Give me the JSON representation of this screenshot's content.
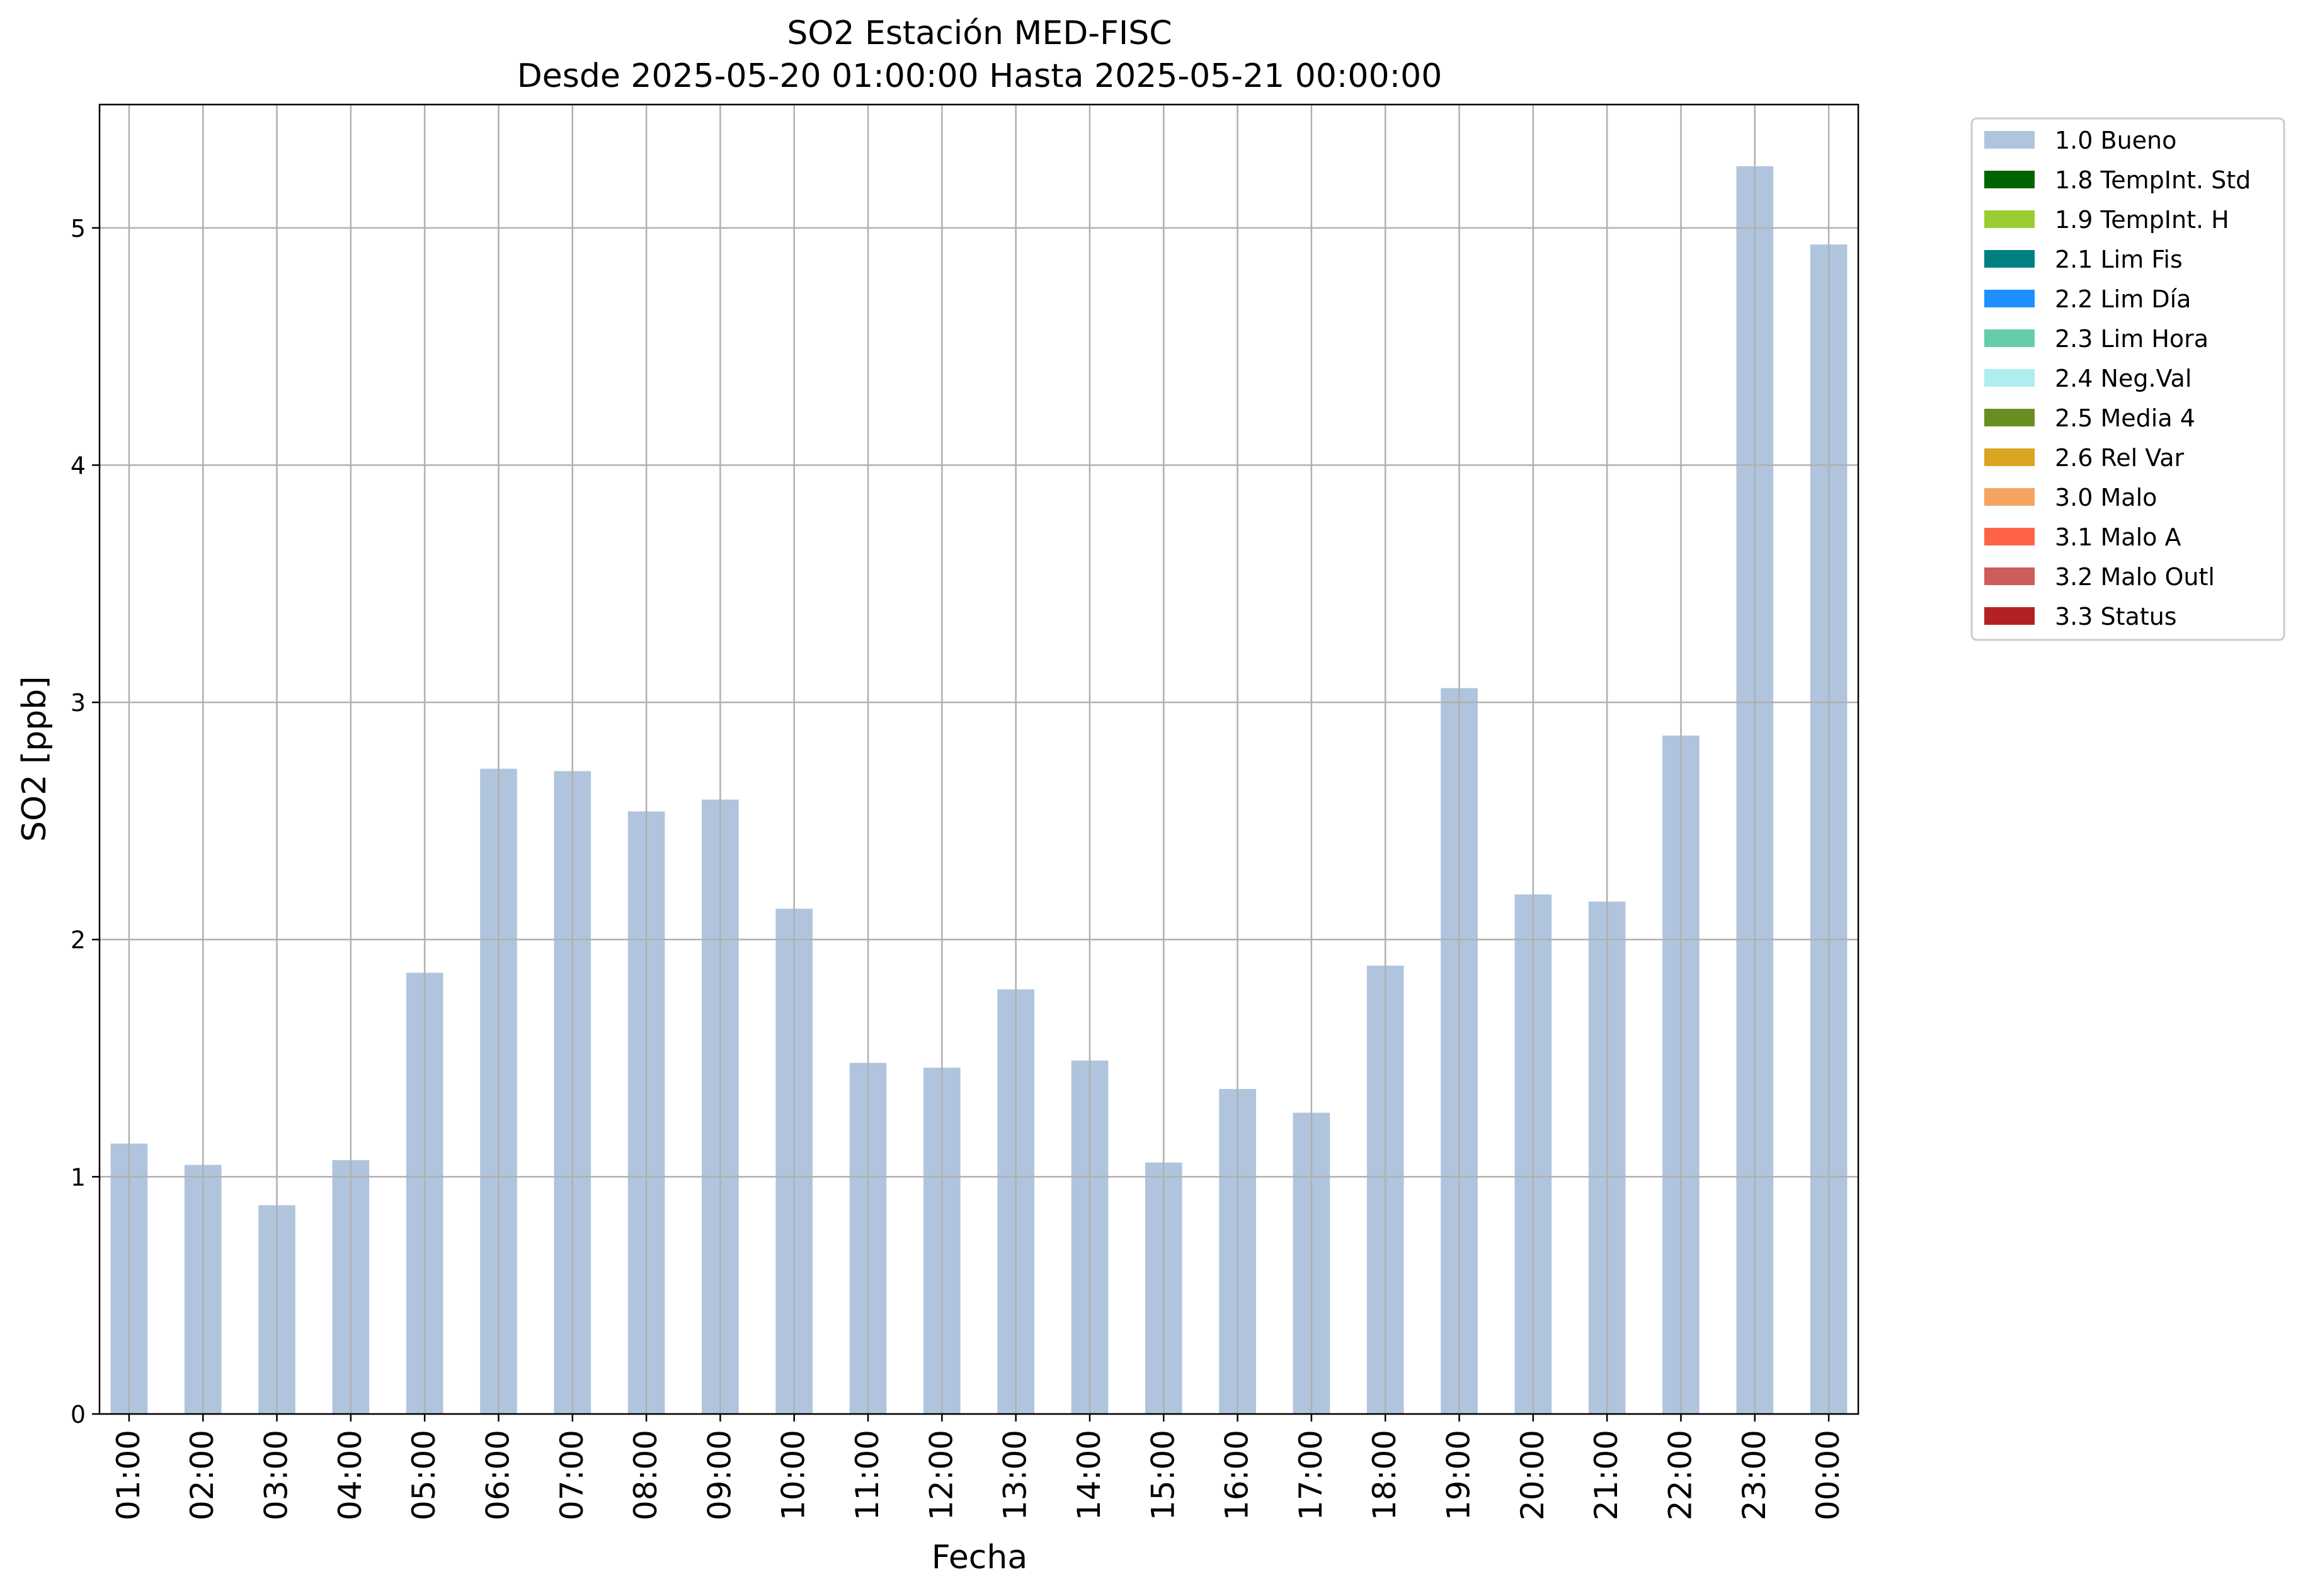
{
  "chart_data": {
    "type": "bar",
    "title": "SO2 Estación MED-FISC",
    "subtitle": "Desde 2025-05-20 01:00:00 Hasta 2025-05-21 00:00:00",
    "xlabel": "Fecha",
    "ylabel": "SO2 [ppb]",
    "ylim": [
      0,
      5.52
    ],
    "yticks": [
      "0",
      "1",
      "2",
      "3",
      "4",
      "5"
    ],
    "grid": true,
    "legend_position": "outside-right-top",
    "categories": [
      "01:00",
      "02:00",
      "03:00",
      "04:00",
      "05:00",
      "06:00",
      "07:00",
      "08:00",
      "09:00",
      "10:00",
      "11:00",
      "12:00",
      "13:00",
      "14:00",
      "15:00",
      "16:00",
      "17:00",
      "18:00",
      "19:00",
      "20:00",
      "21:00",
      "22:00",
      "23:00",
      "00:00"
    ],
    "series": [
      {
        "name": "1.0 Bueno",
        "color": "#b0c4de",
        "values": [
          1.14,
          1.05,
          0.88,
          1.07,
          1.86,
          2.72,
          2.71,
          2.54,
          2.59,
          2.13,
          1.48,
          1.46,
          1.79,
          1.49,
          1.06,
          1.37,
          1.27,
          1.89,
          3.06,
          2.19,
          2.16,
          2.86,
          5.26,
          4.93
        ]
      }
    ],
    "legend": [
      {
        "label": "1.0 Bueno",
        "color": "#b0c4de"
      },
      {
        "label": "1.8 TempInt. Std",
        "color": "#006400"
      },
      {
        "label": "1.9 TempInt. H",
        "color": "#9acd32"
      },
      {
        "label": "2.1 Lim Fis",
        "color": "#008080"
      },
      {
        "label": "2.2 Lim Día",
        "color": "#1e90ff"
      },
      {
        "label": "2.3 Lim Hora",
        "color": "#66cdaa"
      },
      {
        "label": "2.4 Neg.Val",
        "color": "#afeeee"
      },
      {
        "label": "2.5 Media 4",
        "color": "#6b8e23"
      },
      {
        "label": "2.6 Rel Var",
        "color": "#daa520"
      },
      {
        "label": "3.0 Malo",
        "color": "#f4a460"
      },
      {
        "label": "3.1 Malo A",
        "color": "#ff6347"
      },
      {
        "label": "3.2 Malo Outl",
        "color": "#cd5c5c"
      },
      {
        "label": "3.3 Status",
        "color": "#b22222"
      }
    ]
  }
}
